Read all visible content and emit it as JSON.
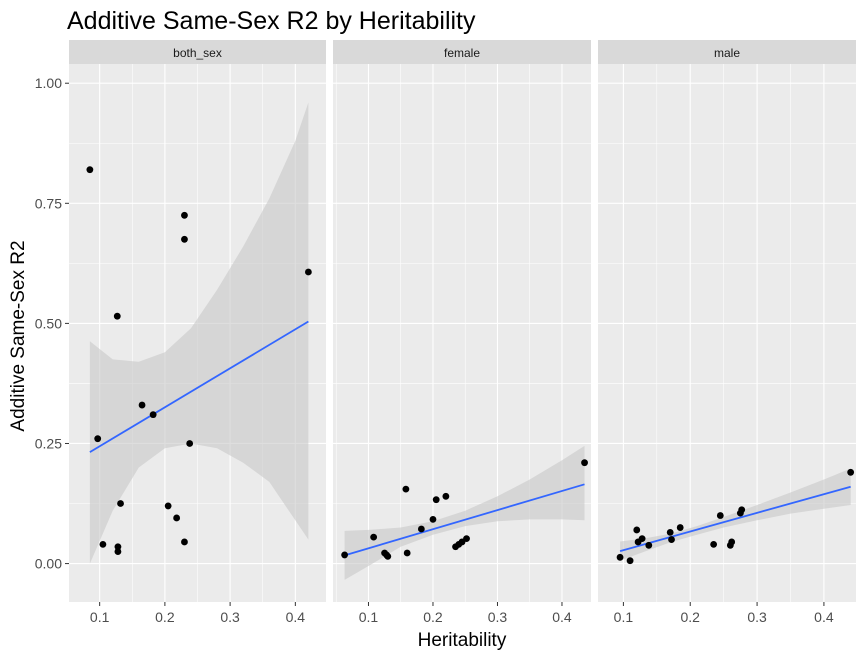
{
  "chart_data": {
    "type": "scatter",
    "title": "Additive Same-Sex R2 by Heritability",
    "xlabel": "Heritability",
    "ylabel": "Additive Same-Sex R2",
    "ylim": [
      -0.08,
      1.04
    ],
    "yticks": [
      0.0,
      0.25,
      0.5,
      0.75,
      1.0
    ],
    "ytick_labels": [
      "0.00",
      "0.25",
      "0.50",
      "0.75",
      "1.00"
    ],
    "xticks": [
      0.1,
      0.2,
      0.3,
      0.4
    ],
    "xtick_labels": [
      "0.1",
      "0.2",
      "0.3",
      "0.4"
    ],
    "grid": true,
    "colors": {
      "panel_bg": "#ebebeb",
      "strip_bg": "#d9d9d9",
      "grid": "#ffffff",
      "point": "#000000",
      "line": "#3366ff",
      "ribbon": "#c8c8c8"
    },
    "panels": [
      {
        "label": "both_sex",
        "xlim": [
          0.053,
          0.447
        ],
        "points": [
          {
            "x": 0.085,
            "y": 0.82
          },
          {
            "x": 0.097,
            "y": 0.26
          },
          {
            "x": 0.105,
            "y": 0.04
          },
          {
            "x": 0.127,
            "y": 0.515
          },
          {
            "x": 0.128,
            "y": 0.035
          },
          {
            "x": 0.128,
            "y": 0.025
          },
          {
            "x": 0.132,
            "y": 0.125
          },
          {
            "x": 0.165,
            "y": 0.33
          },
          {
            "x": 0.182,
            "y": 0.31
          },
          {
            "x": 0.205,
            "y": 0.12
          },
          {
            "x": 0.218,
            "y": 0.095
          },
          {
            "x": 0.23,
            "y": 0.725
          },
          {
            "x": 0.23,
            "y": 0.675
          },
          {
            "x": 0.23,
            "y": 0.045
          },
          {
            "x": 0.238,
            "y": 0.25
          },
          {
            "x": 0.42,
            "y": 0.607
          }
        ],
        "fit": {
          "x": [
            0.085,
            0.42
          ],
          "y": [
            0.232,
            0.504
          ]
        },
        "ribbon": {
          "x": [
            0.085,
            0.12,
            0.16,
            0.2,
            0.24,
            0.28,
            0.32,
            0.36,
            0.4,
            0.42
          ],
          "upper": [
            0.463,
            0.425,
            0.42,
            0.44,
            0.49,
            0.57,
            0.66,
            0.76,
            0.88,
            0.96
          ],
          "lower": [
            0.0,
            0.11,
            0.2,
            0.24,
            0.25,
            0.24,
            0.21,
            0.17,
            0.09,
            0.05
          ]
        }
      },
      {
        "label": "female",
        "xlim": [
          0.045,
          0.445
        ],
        "points": [
          {
            "x": 0.063,
            "y": 0.018
          },
          {
            "x": 0.108,
            "y": 0.055
          },
          {
            "x": 0.125,
            "y": 0.022
          },
          {
            "x": 0.128,
            "y": 0.018
          },
          {
            "x": 0.13,
            "y": 0.015
          },
          {
            "x": 0.158,
            "y": 0.155
          },
          {
            "x": 0.16,
            "y": 0.022
          },
          {
            "x": 0.182,
            "y": 0.072
          },
          {
            "x": 0.2,
            "y": 0.092
          },
          {
            "x": 0.205,
            "y": 0.133
          },
          {
            "x": 0.22,
            "y": 0.14
          },
          {
            "x": 0.235,
            "y": 0.035
          },
          {
            "x": 0.24,
            "y": 0.04
          },
          {
            "x": 0.245,
            "y": 0.045
          },
          {
            "x": 0.252,
            "y": 0.052
          },
          {
            "x": 0.435,
            "y": 0.21
          }
        ],
        "fit": {
          "x": [
            0.063,
            0.435
          ],
          "y": [
            0.017,
            0.165
          ]
        },
        "ribbon": {
          "x": [
            0.063,
            0.1,
            0.15,
            0.2,
            0.25,
            0.3,
            0.35,
            0.4,
            0.435
          ],
          "upper": [
            0.068,
            0.07,
            0.075,
            0.088,
            0.11,
            0.14,
            0.175,
            0.215,
            0.245
          ],
          "lower": [
            -0.034,
            -0.005,
            0.035,
            0.06,
            0.078,
            0.088,
            0.092,
            0.092,
            0.09
          ]
        }
      },
      {
        "label": "male",
        "xlim": [
          0.062,
          0.448
        ],
        "points": [
          {
            "x": 0.095,
            "y": 0.013
          },
          {
            "x": 0.11,
            "y": 0.006
          },
          {
            "x": 0.12,
            "y": 0.07
          },
          {
            "x": 0.122,
            "y": 0.045
          },
          {
            "x": 0.128,
            "y": 0.052
          },
          {
            "x": 0.138,
            "y": 0.038
          },
          {
            "x": 0.17,
            "y": 0.065
          },
          {
            "x": 0.172,
            "y": 0.05
          },
          {
            "x": 0.185,
            "y": 0.075
          },
          {
            "x": 0.235,
            "y": 0.04
          },
          {
            "x": 0.245,
            "y": 0.1
          },
          {
            "x": 0.26,
            "y": 0.038
          },
          {
            "x": 0.262,
            "y": 0.045
          },
          {
            "x": 0.275,
            "y": 0.105
          },
          {
            "x": 0.277,
            "y": 0.112
          },
          {
            "x": 0.44,
            "y": 0.19
          }
        ],
        "fit": {
          "x": [
            0.095,
            0.44
          ],
          "y": [
            0.026,
            0.16
          ]
        },
        "ribbon": {
          "x": [
            0.095,
            0.13,
            0.17,
            0.21,
            0.25,
            0.3,
            0.35,
            0.4,
            0.44
          ],
          "upper": [
            0.046,
            0.052,
            0.062,
            0.078,
            0.097,
            0.122,
            0.148,
            0.175,
            0.198
          ],
          "lower": [
            0.006,
            0.024,
            0.044,
            0.06,
            0.075,
            0.09,
            0.104,
            0.114,
            0.122
          ]
        }
      }
    ]
  }
}
